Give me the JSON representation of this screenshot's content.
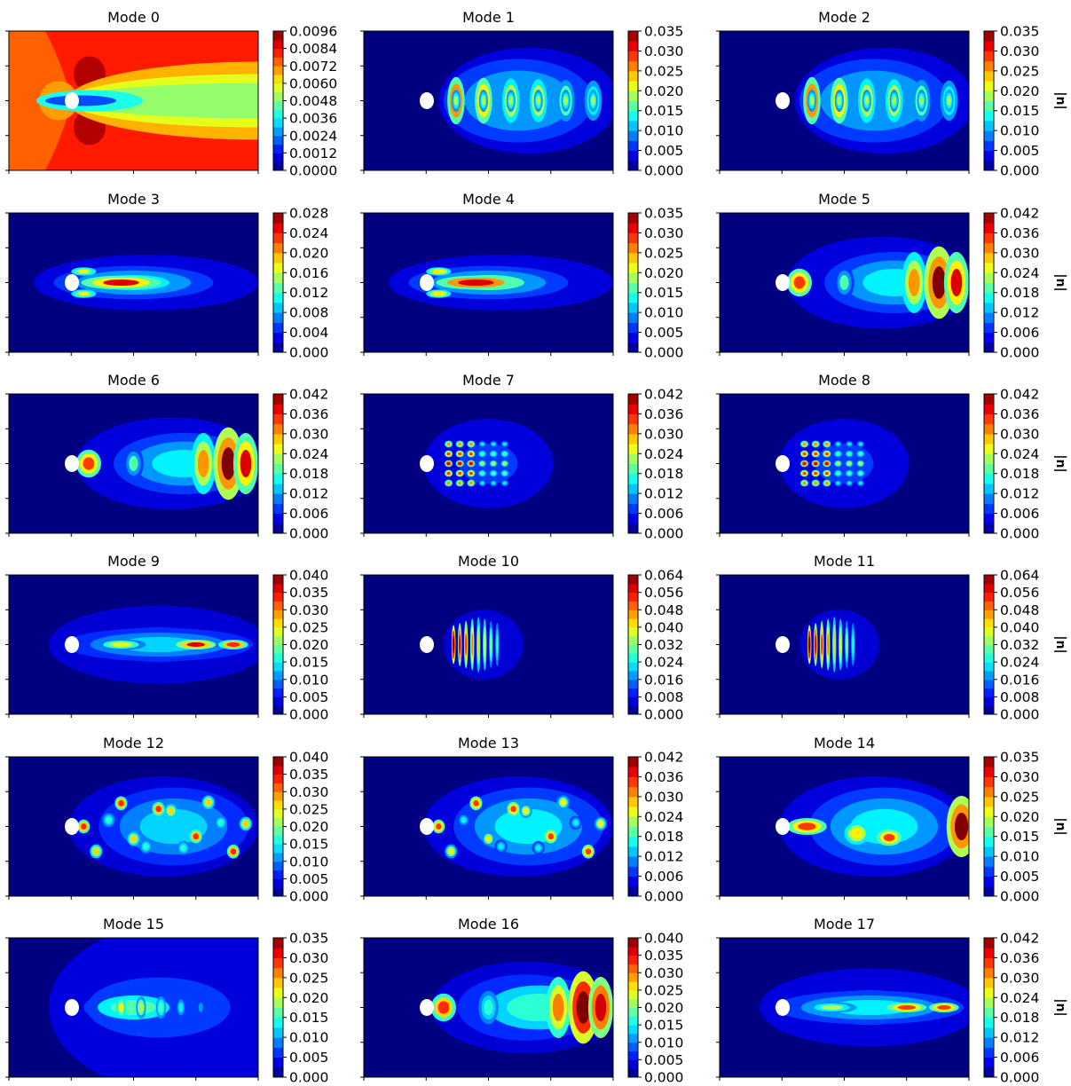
{
  "figure": {
    "colorbar_label": "|u|",
    "colormap": "jet",
    "colorbar_label_shown_in_columns": [
      2
    ]
  },
  "chart_data": [
    {
      "type": "heatmap",
      "title": "Mode 0",
      "colorbar_ticks": [
        "0.0000",
        "0.0012",
        "0.0024",
        "0.0036",
        "0.0048",
        "0.0060",
        "0.0072",
        "0.0084",
        "0.0096"
      ],
      "vmin": 0,
      "vmax": 0.0096,
      "pattern": "mean-flow",
      "peak_fraction": 1.0
    },
    {
      "type": "heatmap",
      "title": "Mode 1",
      "colorbar_ticks": [
        "0.000",
        "0.005",
        "0.010",
        "0.015",
        "0.020",
        "0.025",
        "0.030",
        "0.035"
      ],
      "vmin": 0,
      "vmax": 0.035,
      "pattern": "shedding-pairs",
      "peak_fraction": 0.95
    },
    {
      "type": "heatmap",
      "title": "Mode 2",
      "colorbar_ticks": [
        "0.000",
        "0.005",
        "0.010",
        "0.015",
        "0.020",
        "0.025",
        "0.030",
        "0.035"
      ],
      "vmin": 0,
      "vmax": 0.035,
      "pattern": "shedding-pairs",
      "peak_fraction": 0.95
    },
    {
      "type": "heatmap",
      "title": "Mode 3",
      "colorbar_ticks": [
        "0.000",
        "0.004",
        "0.008",
        "0.012",
        "0.016",
        "0.020",
        "0.024",
        "0.028"
      ],
      "vmin": 0,
      "vmax": 0.028,
      "pattern": "shear-layer",
      "peak_fraction": 0.9
    },
    {
      "type": "heatmap",
      "title": "Mode 4",
      "colorbar_ticks": [
        "0.000",
        "0.005",
        "0.010",
        "0.015",
        "0.020",
        "0.025",
        "0.030",
        "0.035"
      ],
      "vmin": 0,
      "vmax": 0.035,
      "pattern": "shear-layer",
      "peak_fraction": 0.95
    },
    {
      "type": "heatmap",
      "title": "Mode 5",
      "colorbar_ticks": [
        "0.000",
        "0.006",
        "0.012",
        "0.018",
        "0.024",
        "0.030",
        "0.036",
        "0.042"
      ],
      "vmin": 0,
      "vmax": 0.042,
      "pattern": "downstream-blobs",
      "peak_fraction": 0.95
    },
    {
      "type": "heatmap",
      "title": "Mode 6",
      "colorbar_ticks": [
        "0.000",
        "0.006",
        "0.012",
        "0.018",
        "0.024",
        "0.030",
        "0.036",
        "0.042"
      ],
      "vmin": 0,
      "vmax": 0.042,
      "pattern": "downstream-blobs",
      "peak_fraction": 0.95
    },
    {
      "type": "heatmap",
      "title": "Mode 7",
      "colorbar_ticks": [
        "0.000",
        "0.006",
        "0.012",
        "0.018",
        "0.024",
        "0.030",
        "0.036",
        "0.042"
      ],
      "vmin": 0,
      "vmax": 0.042,
      "pattern": "checker",
      "peak_fraction": 0.95
    },
    {
      "type": "heatmap",
      "title": "Mode 8",
      "colorbar_ticks": [
        "0.000",
        "0.006",
        "0.012",
        "0.018",
        "0.024",
        "0.030",
        "0.036",
        "0.042"
      ],
      "vmin": 0,
      "vmax": 0.042,
      "pattern": "checker",
      "peak_fraction": 0.95
    },
    {
      "type": "heatmap",
      "title": "Mode 9",
      "colorbar_ticks": [
        "0.000",
        "0.005",
        "0.010",
        "0.015",
        "0.020",
        "0.025",
        "0.030",
        "0.035",
        "0.040"
      ],
      "vmin": 0,
      "vmax": 0.04,
      "pattern": "centerline",
      "peak_fraction": 0.9
    },
    {
      "type": "heatmap",
      "title": "Mode 10",
      "colorbar_ticks": [
        "0.000",
        "0.008",
        "0.016",
        "0.024",
        "0.032",
        "0.040",
        "0.048",
        "0.056",
        "0.064"
      ],
      "vmin": 0,
      "vmax": 0.064,
      "pattern": "compact-stripes",
      "peak_fraction": 1.0
    },
    {
      "type": "heatmap",
      "title": "Mode 11",
      "colorbar_ticks": [
        "0.000",
        "0.008",
        "0.016",
        "0.024",
        "0.032",
        "0.040",
        "0.048",
        "0.056",
        "0.064"
      ],
      "vmin": 0,
      "vmax": 0.064,
      "pattern": "compact-stripes",
      "peak_fraction": 1.0
    },
    {
      "type": "heatmap",
      "title": "Mode 12",
      "colorbar_ticks": [
        "0.000",
        "0.005",
        "0.010",
        "0.015",
        "0.020",
        "0.025",
        "0.030",
        "0.035",
        "0.040"
      ],
      "vmin": 0,
      "vmax": 0.04,
      "pattern": "turbulent",
      "peak_fraction": 0.95
    },
    {
      "type": "heatmap",
      "title": "Mode 13",
      "colorbar_ticks": [
        "0.000",
        "0.006",
        "0.012",
        "0.018",
        "0.024",
        "0.030",
        "0.036",
        "0.042"
      ],
      "vmin": 0,
      "vmax": 0.042,
      "pattern": "turbulent",
      "peak_fraction": 0.9
    },
    {
      "type": "heatmap",
      "title": "Mode 14",
      "colorbar_ticks": [
        "0.000",
        "0.005",
        "0.010",
        "0.015",
        "0.020",
        "0.025",
        "0.030",
        "0.035"
      ],
      "vmin": 0,
      "vmax": 0.035,
      "pattern": "turbulent-right",
      "peak_fraction": 0.95
    },
    {
      "type": "heatmap",
      "title": "Mode 15",
      "colorbar_ticks": [
        "0.000",
        "0.005",
        "0.010",
        "0.015",
        "0.020",
        "0.025",
        "0.030",
        "0.035"
      ],
      "vmin": 0,
      "vmax": 0.035,
      "pattern": "arc-wake",
      "peak_fraction": 0.8
    },
    {
      "type": "heatmap",
      "title": "Mode 16",
      "colorbar_ticks": [
        "0.000",
        "0.005",
        "0.010",
        "0.015",
        "0.020",
        "0.025",
        "0.030",
        "0.035",
        "0.040"
      ],
      "vmin": 0,
      "vmax": 0.04,
      "pattern": "downstream-blobs",
      "peak_fraction": 1.0
    },
    {
      "type": "heatmap",
      "title": "Mode 17",
      "colorbar_ticks": [
        "0.000",
        "0.006",
        "0.012",
        "0.018",
        "0.024",
        "0.030",
        "0.036",
        "0.042"
      ],
      "vmin": 0,
      "vmax": 0.042,
      "pattern": "centerline",
      "peak_fraction": 0.85
    }
  ]
}
